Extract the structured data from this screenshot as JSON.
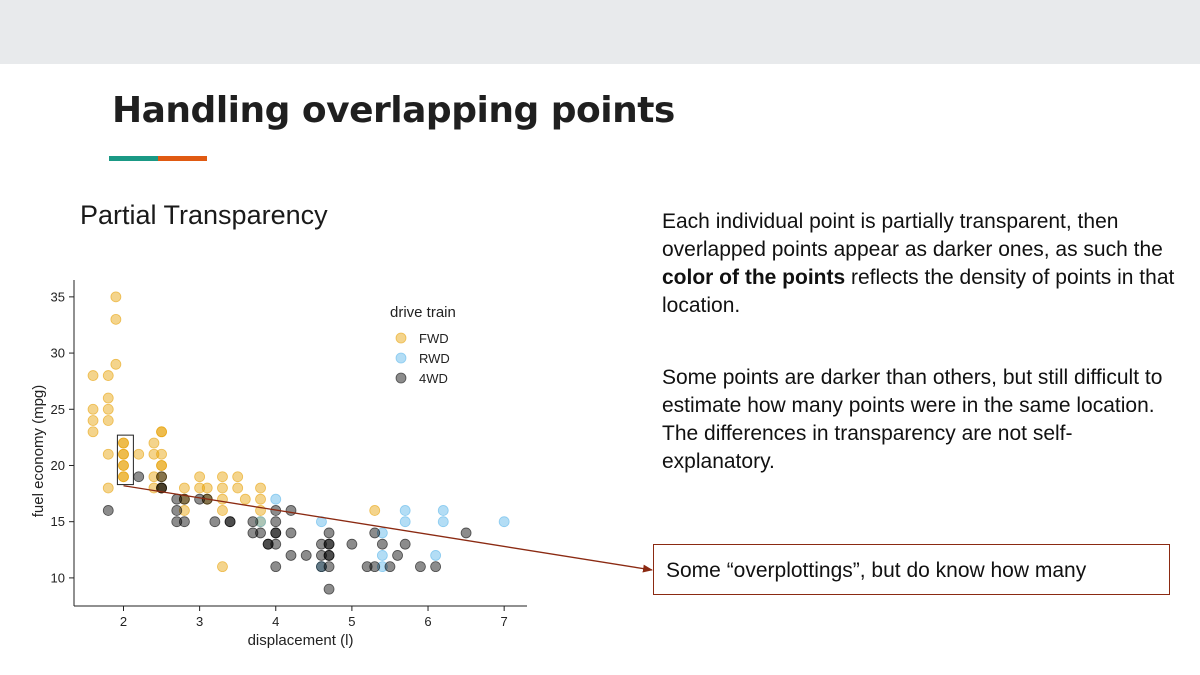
{
  "slide": {
    "title": "Handling overlapping points",
    "subtitle": "Partial Transparency",
    "accent_colors": [
      "#1a9985",
      "#e05a12"
    ],
    "paragraph1": {
      "pre": "Each individual point is partially transparent, then overlapped points appear as darker ones, as such the ",
      "bold": "color of the points",
      "post": " reflects the density of points in that location."
    },
    "paragraph2": {
      "line1": "Some points are darker than others, but still difficult to estimate how many points were in the same location.",
      "line2": "The differences in transparency are not self-explanatory."
    },
    "callout": "Some “overplottings”, but do know how many",
    "arrow_color": "#8b2a12"
  },
  "chart_data": {
    "type": "scatter",
    "xlabel": "displacement (l)",
    "ylabel": "fuel economy (mpg)",
    "xlim": [
      1.35,
      7.3
    ],
    "ylim": [
      7.5,
      36.5
    ],
    "xticks": [
      2,
      3,
      4,
      5,
      6,
      7
    ],
    "yticks": [
      10,
      15,
      20,
      25,
      30,
      35
    ],
    "grid": false,
    "legend": {
      "title": "drive train",
      "position": "top-right"
    },
    "series": [
      {
        "name": "FWD",
        "color": "#e69f00",
        "opacity": 0.45,
        "points": [
          [
            1.6,
            28
          ],
          [
            1.6,
            25
          ],
          [
            1.6,
            24
          ],
          [
            1.6,
            23
          ],
          [
            1.8,
            28
          ],
          [
            1.8,
            26
          ],
          [
            1.8,
            25
          ],
          [
            1.8,
            24
          ],
          [
            1.8,
            21
          ],
          [
            1.8,
            18
          ],
          [
            1.9,
            35
          ],
          [
            1.9,
            33
          ],
          [
            1.9,
            29
          ],
          [
            2,
            22
          ],
          [
            2,
            21
          ],
          [
            2,
            20
          ],
          [
            2,
            19
          ],
          [
            2,
            22
          ],
          [
            2,
            21
          ],
          [
            2,
            20
          ],
          [
            2,
            19
          ],
          [
            2.2,
            21
          ],
          [
            2.4,
            22
          ],
          [
            2.4,
            21
          ],
          [
            2.4,
            19
          ],
          [
            2.4,
            18
          ],
          [
            2.5,
            23
          ],
          [
            2.5,
            21
          ],
          [
            2.5,
            20
          ],
          [
            2.5,
            19
          ],
          [
            2.5,
            18
          ],
          [
            2.5,
            20
          ],
          [
            2.5,
            23
          ],
          [
            2.8,
            18
          ],
          [
            2.8,
            17
          ],
          [
            2.8,
            16
          ],
          [
            3,
            19
          ],
          [
            3,
            18
          ],
          [
            3.1,
            18
          ],
          [
            3.1,
            17
          ],
          [
            3.3,
            19
          ],
          [
            3.3,
            18
          ],
          [
            3.3,
            17
          ],
          [
            3.3,
            16
          ],
          [
            3.3,
            11
          ],
          [
            3.5,
            19
          ],
          [
            3.5,
            18
          ],
          [
            3.6,
            17
          ],
          [
            3.8,
            18
          ],
          [
            3.8,
            17
          ],
          [
            3.8,
            16
          ],
          [
            3.8,
            15
          ],
          [
            5.3,
            16
          ]
        ]
      },
      {
        "name": "RWD",
        "color": "#56b4e9",
        "opacity": 0.45,
        "points": [
          [
            3.8,
            15
          ],
          [
            4,
            17
          ],
          [
            4.6,
            15
          ],
          [
            4.6,
            11
          ],
          [
            5.4,
            14
          ],
          [
            5.4,
            12
          ],
          [
            5.4,
            11
          ],
          [
            5.7,
            16
          ],
          [
            5.7,
            15
          ],
          [
            6.1,
            12
          ],
          [
            6.2,
            16
          ],
          [
            6.2,
            15
          ],
          [
            7,
            15
          ]
        ]
      },
      {
        "name": "4WD",
        "color": "#000000",
        "opacity": 0.45,
        "points": [
          [
            1.8,
            16
          ],
          [
            2.2,
            19
          ],
          [
            2.5,
            19
          ],
          [
            2.5,
            18
          ],
          [
            2.5,
            18
          ],
          [
            2.7,
            17
          ],
          [
            2.7,
            16
          ],
          [
            2.7,
            15
          ],
          [
            2.8,
            17
          ],
          [
            2.8,
            15
          ],
          [
            3,
            17
          ],
          [
            3.1,
            17
          ],
          [
            3.2,
            15
          ],
          [
            3.4,
            15
          ],
          [
            3.4,
            15
          ],
          [
            3.7,
            15
          ],
          [
            3.7,
            14
          ],
          [
            3.8,
            14
          ],
          [
            3.9,
            13
          ],
          [
            3.9,
            13
          ],
          [
            4,
            16
          ],
          [
            4,
            15
          ],
          [
            4,
            14
          ],
          [
            4,
            14
          ],
          [
            4,
            13
          ],
          [
            4,
            11
          ],
          [
            4.2,
            16
          ],
          [
            4.2,
            14
          ],
          [
            4.2,
            12
          ],
          [
            4.4,
            12
          ],
          [
            4.6,
            13
          ],
          [
            4.6,
            12
          ],
          [
            4.6,
            11
          ],
          [
            4.7,
            14
          ],
          [
            4.7,
            13
          ],
          [
            4.7,
            13
          ],
          [
            4.7,
            12
          ],
          [
            4.7,
            12
          ],
          [
            4.7,
            11
          ],
          [
            4.7,
            9
          ],
          [
            5,
            13
          ],
          [
            5.2,
            11
          ],
          [
            5.3,
            11
          ],
          [
            5.3,
            14
          ],
          [
            5.4,
            13
          ],
          [
            5.5,
            11
          ],
          [
            5.6,
            12
          ],
          [
            5.7,
            13
          ],
          [
            5.9,
            11
          ],
          [
            6.1,
            11
          ],
          [
            6.5,
            14
          ]
        ]
      }
    ]
  }
}
